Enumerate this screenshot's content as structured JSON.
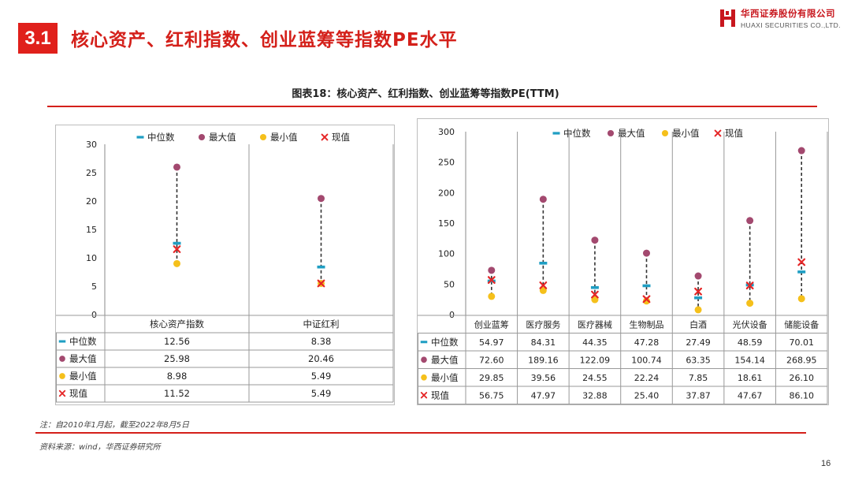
{
  "header": {
    "section_number": "3.1",
    "title": "核心资产、红利指数、创业蓝筹等指数PE水平",
    "logo_cn": "华西证券股份有限公司",
    "logo_en": "HUAXI SECURITIES CO.,LTD."
  },
  "figure_title": "图表18：核心资产、红利指数、创业蓝筹等指数PE(TTM)",
  "colors": {
    "median": "#1f9ec3",
    "max": "#a3496f",
    "min": "#f5c01b",
    "current": "#e52526",
    "accent": "#d4201a"
  },
  "legend": {
    "median": "中位数",
    "max": "最大值",
    "min": "最小值",
    "current": "现值"
  },
  "chart_data": [
    {
      "type": "table",
      "ylim": [
        0,
        30
      ],
      "yticks": [
        "0",
        "5",
        "10",
        "15",
        "20",
        "25",
        "30"
      ],
      "categories": [
        "核心资产指数",
        "中证红利"
      ],
      "series": [
        {
          "name": "中位数",
          "values": [
            12.56,
            8.38
          ],
          "labels": [
            "12.56",
            "8.38"
          ]
        },
        {
          "name": "最大值",
          "values": [
            25.98,
            20.46
          ],
          "labels": [
            "25.98",
            "20.46"
          ]
        },
        {
          "name": "最小值",
          "values": [
            8.98,
            5.49
          ],
          "labels": [
            "8.98",
            "5.49"
          ]
        },
        {
          "name": "现值",
          "values": [
            11.52,
            5.49
          ],
          "labels": [
            "11.52",
            "5.49"
          ]
        }
      ]
    },
    {
      "type": "table",
      "ylim": [
        0,
        300
      ],
      "yticks": [
        "0",
        "50",
        "100",
        "150",
        "200",
        "250",
        "300"
      ],
      "categories": [
        "创业蓝筹",
        "医疗服务",
        "医疗器械",
        "生物制品",
        "白酒",
        "光伏设备",
        "储能设备"
      ],
      "series": [
        {
          "name": "中位数",
          "values": [
            54.97,
            84.31,
            44.35,
            47.28,
            27.49,
            48.59,
            70.01
          ],
          "labels": [
            "54.97",
            "84.31",
            "44.35",
            "47.28",
            "27.49",
            "48.59",
            "70.01"
          ]
        },
        {
          "name": "最大值",
          "values": [
            72.6,
            189.16,
            122.09,
            100.74,
            63.35,
            154.14,
            268.95
          ],
          "labels": [
            "72.60",
            "189.16",
            "122.09",
            "100.74",
            "63.35",
            "154.14",
            "268.95"
          ]
        },
        {
          "name": "最小值",
          "values": [
            29.85,
            39.56,
            24.55,
            22.24,
            7.85,
            18.61,
            26.1
          ],
          "labels": [
            "29.85",
            "39.56",
            "24.55",
            "22.24",
            "7.85",
            "18.61",
            "26.10"
          ]
        },
        {
          "name": "现值",
          "values": [
            56.75,
            47.97,
            32.88,
            25.4,
            37.87,
            47.67,
            86.1
          ],
          "labels": [
            "56.75",
            "47.97",
            "32.88",
            "25.40",
            "37.87",
            "47.67",
            "86.10"
          ]
        }
      ]
    }
  ],
  "note": "注：自2010年1月起，截至2022年8月5日",
  "source": "资料来源：wind，华西证券研究所",
  "page_number": "16"
}
